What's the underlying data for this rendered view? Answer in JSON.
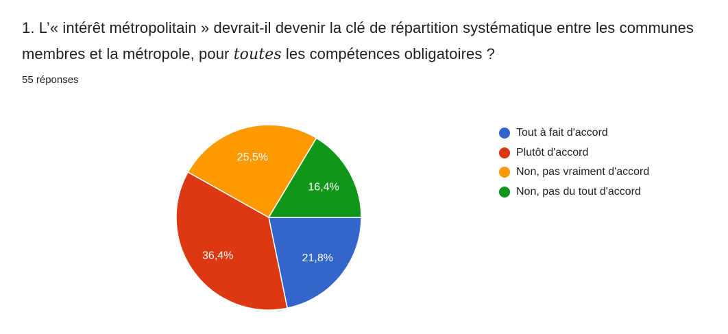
{
  "question": {
    "prefix": "1. L’« intérêt métropolitain » devrait-il devenir la clé de répartition systématique entre les communes membres et la métropole, pour ",
    "emphasis": "toutes",
    "suffix": " les compétences obligatoires ?"
  },
  "responses_label": "55 réponses",
  "chart_data": {
    "type": "pie",
    "categories": [
      "Tout à fait d'accord",
      "Plutôt d'accord",
      "Non, pas vraiment d'accord",
      "Non, pas du tout d'accord"
    ],
    "values": [
      21.8,
      36.4,
      25.5,
      16.4
    ],
    "data_labels": [
      "21,8%",
      "36,4%",
      "25,5%",
      "16,4%"
    ],
    "colors": [
      "#3366cc",
      "#dc3912",
      "#ff9900",
      "#109618"
    ],
    "start_angle_deg": 90,
    "direction": "clockwise",
    "legend_position": "right"
  }
}
